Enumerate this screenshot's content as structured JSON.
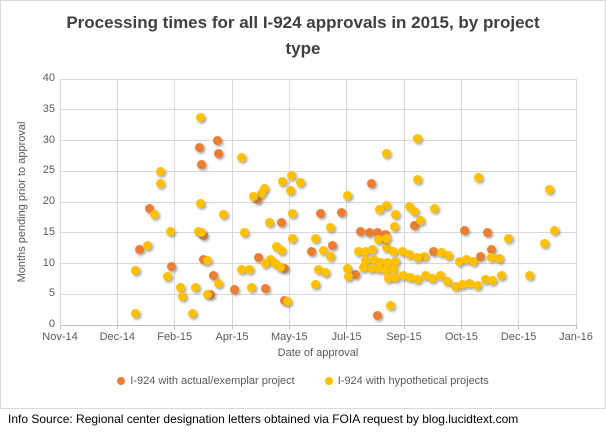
{
  "footer": {
    "text": "Info Source: Regional center designation letters obtained via FOIA request by blog.lucidtext.com"
  },
  "chart_data": {
    "type": "scatter",
    "title": "Processing times for all I-924 approvals in 2015, by project type",
    "xlabel": "Date of approval",
    "ylabel": "Months pending prior to approval",
    "x_ticks": [
      "Nov-14",
      "Dec-14",
      "Feb-15",
      "Apr-15",
      "May-15",
      "Jul-15",
      "Sep-15",
      "Oct-15",
      "Dec-15",
      "Jan-16"
    ],
    "y_ticks": [
      0,
      5,
      10,
      15,
      20,
      25,
      30,
      35,
      40
    ],
    "ylim": [
      0,
      40
    ],
    "x_unit_note": "x values are fractional tick-index positions: 0=Nov-14 tick ... 9=Jan-16 tick",
    "grid": true,
    "legend_position": "bottom",
    "series": [
      {
        "name": "I-924 with actual/exemplar project",
        "color": "#ED7D31",
        "points": [
          [
            2.74,
            30
          ],
          [
            2.44,
            28.9
          ],
          [
            2.77,
            27.9
          ],
          [
            2.47,
            26.1
          ],
          [
            5.44,
            23
          ],
          [
            3.44,
            20.4
          ],
          [
            1.56,
            18.9
          ],
          [
            4.55,
            18.2
          ],
          [
            4.91,
            18.3
          ],
          [
            3.87,
            16.6
          ],
          [
            6.18,
            16.1
          ],
          [
            7.06,
            15.4
          ],
          [
            7.45,
            15
          ],
          [
            5.24,
            15.2
          ],
          [
            5.39,
            15
          ],
          [
            5.54,
            15
          ],
          [
            5.68,
            14.7
          ],
          [
            2.51,
            14.6
          ],
          [
            5.61,
            14.3
          ],
          [
            1.39,
            12.2
          ],
          [
            4.76,
            13
          ],
          [
            4.38,
            11.9
          ],
          [
            6.51,
            11.9
          ],
          [
            7.34,
            11.2
          ],
          [
            7.53,
            12.2
          ],
          [
            3.46,
            10.9
          ],
          [
            2.5,
            10.6
          ],
          [
            1.94,
            9.5
          ],
          [
            3.92,
            9.2
          ],
          [
            5.15,
            8.2
          ],
          [
            2.67,
            8.1
          ],
          [
            3.05,
            5.7
          ],
          [
            3.59,
            6
          ],
          [
            2.62,
            4.9
          ],
          [
            3.91,
            4
          ],
          [
            5.54,
            1.6
          ]
        ]
      },
      {
        "name": "I-924 with hypothetical projects",
        "color": "#FFC000",
        "points": [
          [
            2.45,
            33.8
          ],
          [
            6.24,
            30.3
          ],
          [
            5.7,
            27.9
          ],
          [
            3.16,
            27.2
          ],
          [
            1.76,
            25
          ],
          [
            4.03,
            24.3
          ],
          [
            7.3,
            24
          ],
          [
            6.23,
            23.7
          ],
          [
            3.88,
            23.3
          ],
          [
            4.19,
            23.1
          ],
          [
            1.76,
            23
          ],
          [
            3.57,
            22.2
          ],
          [
            8.54,
            22.1
          ],
          [
            4.02,
            21.8
          ],
          [
            3.51,
            21.4
          ],
          [
            5.01,
            21
          ],
          [
            3.38,
            20.9
          ],
          [
            2.45,
            19.8
          ],
          [
            5.7,
            19.5
          ],
          [
            6.1,
            19.2
          ],
          [
            6.53,
            19
          ],
          [
            5.57,
            18.8
          ],
          [
            6.19,
            18.4
          ],
          [
            1.64,
            18
          ],
          [
            2.86,
            18
          ],
          [
            4.06,
            18.2
          ],
          [
            5.85,
            17.9
          ],
          [
            6.29,
            17
          ],
          [
            3.66,
            16.6
          ],
          [
            5.83,
            16
          ],
          [
            4.71,
            15.8
          ],
          [
            1.92,
            15.2
          ],
          [
            2.42,
            15.2
          ],
          [
            3.22,
            15.1
          ],
          [
            8.62,
            15.4
          ],
          [
            2.47,
            15
          ],
          [
            4.45,
            14
          ],
          [
            4.06,
            14.1
          ],
          [
            7.83,
            14.1
          ],
          [
            5.56,
            13.9
          ],
          [
            8.45,
            13.2
          ],
          [
            1.52,
            12.9
          ],
          [
            3.77,
            12.8
          ],
          [
            5.69,
            12.6
          ],
          [
            4.59,
            12.1
          ],
          [
            3.87,
            12.1
          ],
          [
            5.2,
            11.9
          ],
          [
            5.33,
            11.9
          ],
          [
            5.45,
            12.2
          ],
          [
            5.81,
            11.9
          ],
          [
            5.98,
            11.9
          ],
          [
            6.65,
            11.8
          ],
          [
            6.1,
            11.5
          ],
          [
            6.36,
            11.2
          ],
          [
            4.71,
            11.2
          ],
          [
            6.78,
            11.3
          ],
          [
            5.69,
            14
          ],
          [
            6.23,
            10.9
          ],
          [
            7.52,
            10.9
          ],
          [
            7.66,
            10.8
          ],
          [
            2.58,
            10.5
          ],
          [
            3.67,
            10.6
          ],
          [
            6.96,
            10.4
          ],
          [
            7.09,
            10.6
          ],
          [
            7.22,
            10.4
          ],
          [
            5.33,
            10.5
          ],
          [
            5.46,
            10.7
          ],
          [
            5.59,
            10.1
          ],
          [
            5.71,
            10.1
          ],
          [
            5.85,
            10.3
          ],
          [
            3.58,
            10
          ],
          [
            3.76,
            10
          ],
          [
            3.85,
            9.3
          ],
          [
            5.02,
            9.2
          ],
          [
            5.29,
            9.3
          ],
          [
            5.43,
            9.2
          ],
          [
            5.55,
            9.2
          ],
          [
            5.68,
            8.9
          ],
          [
            5.81,
            9.1
          ],
          [
            4.5,
            9.1
          ],
          [
            4.63,
            8.6
          ],
          [
            3.17,
            9
          ],
          [
            3.3,
            9
          ],
          [
            1.32,
            8.8
          ],
          [
            5.03,
            7.9
          ],
          [
            1.88,
            7.9
          ],
          [
            5.73,
            7.6
          ],
          [
            5.86,
            7.8
          ],
          [
            5.99,
            8
          ],
          [
            6.12,
            7.8
          ],
          [
            6.24,
            7.4
          ],
          [
            6.37,
            8
          ],
          [
            6.5,
            7.5
          ],
          [
            6.63,
            8
          ],
          [
            6.76,
            7
          ],
          [
            8.19,
            8.1
          ],
          [
            7.42,
            7.4
          ],
          [
            7.55,
            7.3
          ],
          [
            7.7,
            8
          ],
          [
            6.9,
            6.3
          ],
          [
            7.02,
            6.6
          ],
          [
            7.15,
            6.8
          ],
          [
            7.28,
            6.5
          ],
          [
            4.45,
            6.6
          ],
          [
            2.76,
            6.8
          ],
          [
            2.37,
            6.1
          ],
          [
            2.11,
            6.1
          ],
          [
            3.34,
            6.1
          ],
          [
            2.13,
            4.7
          ],
          [
            2.58,
            5
          ],
          [
            3.97,
            3.9
          ],
          [
            5.76,
            3.1
          ],
          [
            2.31,
            1.9
          ],
          [
            1.31,
            1.9
          ]
        ]
      }
    ]
  }
}
